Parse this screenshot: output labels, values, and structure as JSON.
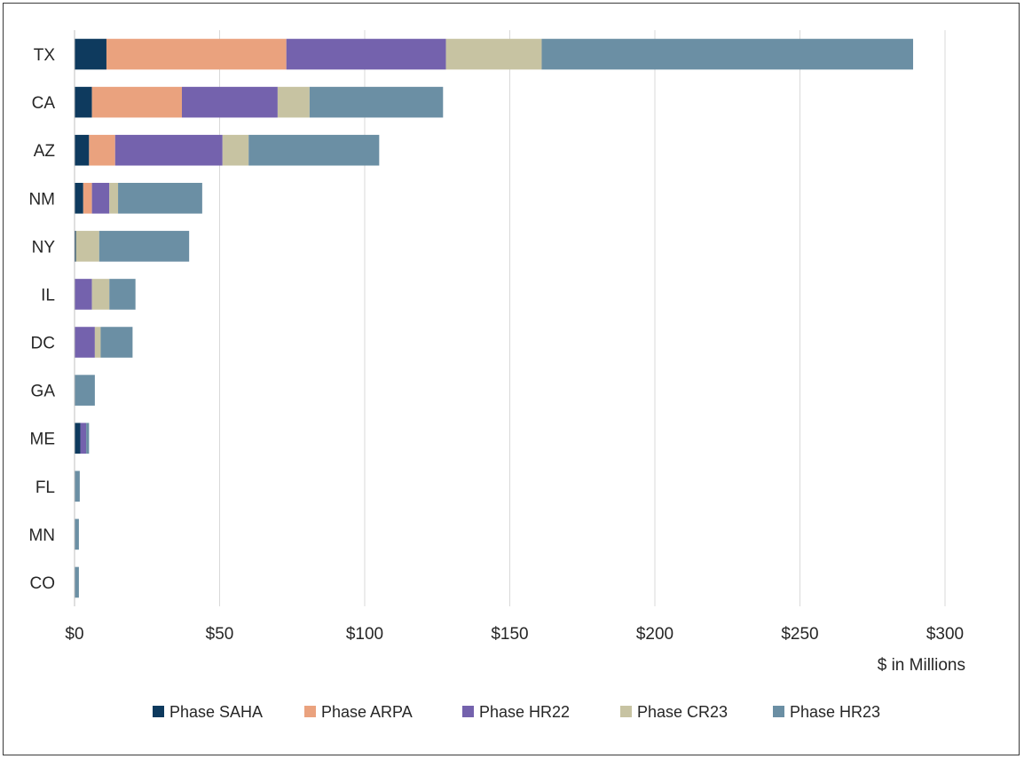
{
  "chart_data": {
    "type": "bar",
    "orientation": "horizontal",
    "stacked": true,
    "title": "",
    "xlabel": "$ in Millions",
    "ylabel": "",
    "xlim": [
      0,
      300
    ],
    "x_ticks": [
      0,
      50,
      100,
      150,
      200,
      250,
      300
    ],
    "x_tick_labels": [
      "$0",
      "$50",
      "$100",
      "$150",
      "$200",
      "$250",
      "$300"
    ],
    "grid": "vertical",
    "legend_position": "bottom",
    "categories": [
      "TX",
      "CA",
      "AZ",
      "NM",
      "NY",
      "IL",
      "DC",
      "GA",
      "ME",
      "FL",
      "MN",
      "CO"
    ],
    "series": [
      {
        "name": "Phase SAHA",
        "color": "#0e3a5e",
        "values": [
          11,
          6,
          5,
          3,
          0.5,
          0,
          0,
          0,
          2,
          0,
          0,
          0
        ]
      },
      {
        "name": "Phase ARPA",
        "color": "#eaa27e",
        "values": [
          62,
          31,
          9,
          3,
          0,
          0,
          0,
          0,
          0,
          0,
          0,
          0
        ]
      },
      {
        "name": "Phase HR22",
        "color": "#7462ad",
        "values": [
          55,
          33,
          37,
          6,
          0,
          6,
          7,
          0,
          2,
          0,
          0,
          0
        ]
      },
      {
        "name": "Phase CR23",
        "color": "#c7c3a2",
        "values": [
          33,
          11,
          9,
          3,
          8,
          6,
          2,
          0,
          0,
          0,
          0,
          0
        ]
      },
      {
        "name": "Phase HR23",
        "color": "#6b8fa4",
        "values": [
          128,
          46,
          45,
          29,
          31,
          9,
          11,
          7,
          1,
          1.8,
          1.5,
          1.5
        ]
      }
    ]
  }
}
